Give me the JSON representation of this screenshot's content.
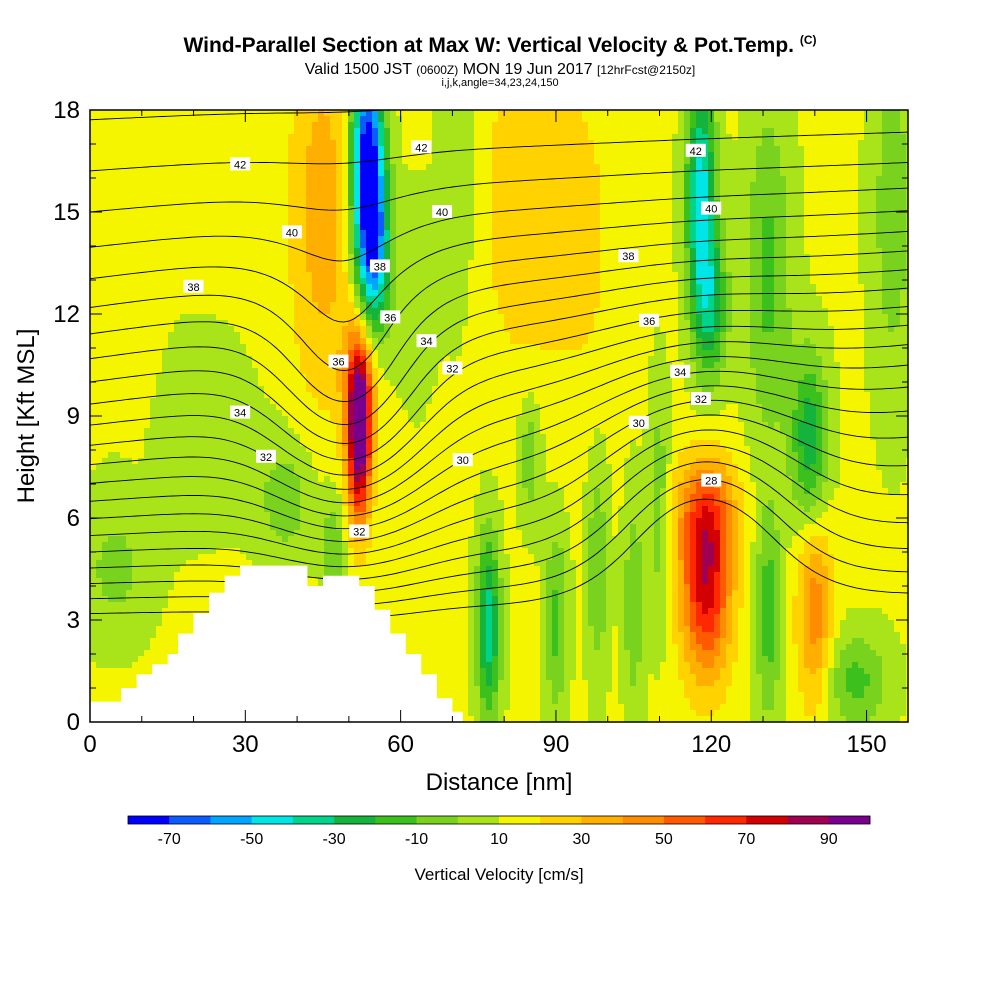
{
  "header": {
    "title": "Wind-Parallel Section at Max W: Vertical Velocity & Pot.Temp.",
    "copyright": "(C)",
    "valid_prefix": "Valid 1500 JST",
    "utc": "(0600Z)",
    "valid_date": "MON 19 Jun 2017",
    "forecast": "[12hrFcst@2150z]",
    "params": "i,j,k,angle=34,23,24,150"
  },
  "chart_data": {
    "type": "heatmap",
    "xlabel": "Distance [nm]",
    "ylabel": "Height [Kft MSL]",
    "xlim": [
      0,
      158
    ],
    "ylim": [
      0,
      18
    ],
    "x_ticks": [
      0,
      30,
      60,
      90,
      120,
      150
    ],
    "y_ticks": [
      0,
      3,
      6,
      9,
      12,
      15,
      18
    ],
    "colorbar": {
      "title": "Vertical Velocity [cm/s]",
      "levels": [
        -80,
        -70,
        -60,
        -50,
        -40,
        -30,
        -20,
        -10,
        0,
        10,
        20,
        30,
        40,
        50,
        60,
        70,
        80,
        90,
        100
      ],
      "tick_labels": [
        "-70",
        "-50",
        "-30",
        "-10",
        "10",
        "30",
        "50",
        "70",
        "90"
      ],
      "colors": [
        "#0000ff",
        "#0a5cff",
        "#00a5ff",
        "#00e5e5",
        "#00d48a",
        "#16b33c",
        "#3cc01e",
        "#78d21e",
        "#a9e319",
        "#f5f500",
        "#ffd200",
        "#ffaf00",
        "#ff8c00",
        "#ff5a00",
        "#ff2800",
        "#d20000",
        "#a00050",
        "#78008c"
      ]
    },
    "contour_variable": "Potential temperature (C)",
    "contour_labels": [
      {
        "text": "42",
        "x": 29,
        "y": 16.4
      },
      {
        "text": "42",
        "x": 64,
        "y": 16.9
      },
      {
        "text": "42",
        "x": 117,
        "y": 16.8
      },
      {
        "text": "40",
        "x": 39,
        "y": 14.4
      },
      {
        "text": "40",
        "x": 68,
        "y": 15.0
      },
      {
        "text": "40",
        "x": 120,
        "y": 15.1
      },
      {
        "text": "38",
        "x": 20,
        "y": 12.8
      },
      {
        "text": "38",
        "x": 56,
        "y": 13.4
      },
      {
        "text": "38",
        "x": 104,
        "y": 13.7
      },
      {
        "text": "36",
        "x": 48,
        "y": 10.6
      },
      {
        "text": "36",
        "x": 58,
        "y": 11.9
      },
      {
        "text": "36",
        "x": 108,
        "y": 11.8
      },
      {
        "text": "34",
        "x": 29,
        "y": 9.1
      },
      {
        "text": "34",
        "x": 65,
        "y": 11.2
      },
      {
        "text": "34",
        "x": 114,
        "y": 10.3
      },
      {
        "text": "32",
        "x": 34,
        "y": 7.8
      },
      {
        "text": "32",
        "x": 70,
        "y": 10.4
      },
      {
        "text": "32",
        "x": 118,
        "y": 9.5
      },
      {
        "text": "32",
        "x": 52,
        "y": 5.6
      },
      {
        "text": "30",
        "x": 106,
        "y": 8.8
      },
      {
        "text": "30",
        "x": 72,
        "y": 7.7
      },
      {
        "text": "28",
        "x": 120,
        "y": 7.1
      }
    ],
    "terrain_profile": [
      [
        0,
        0.6
      ],
      [
        6,
        0.6
      ],
      [
        6,
        1.0
      ],
      [
        9,
        1.0
      ],
      [
        9,
        1.4
      ],
      [
        12,
        1.4
      ],
      [
        12,
        1.7
      ],
      [
        15,
        1.7
      ],
      [
        15,
        2.0
      ],
      [
        17,
        2.0
      ],
      [
        17,
        2.6
      ],
      [
        20,
        2.6
      ],
      [
        20,
        3.2
      ],
      [
        23,
        3.2
      ],
      [
        23,
        3.8
      ],
      [
        26,
        3.8
      ],
      [
        26,
        4.3
      ],
      [
        29,
        4.3
      ],
      [
        29,
        4.6
      ],
      [
        42,
        4.6
      ],
      [
        42,
        4.0
      ],
      [
        45,
        4.0
      ],
      [
        45,
        4.3
      ],
      [
        52,
        4.3
      ],
      [
        52,
        4.0
      ],
      [
        55,
        4.0
      ],
      [
        55,
        3.3
      ],
      [
        58,
        3.3
      ],
      [
        58,
        2.6
      ],
      [
        61,
        2.6
      ],
      [
        61,
        2.0
      ],
      [
        64,
        2.0
      ],
      [
        64,
        1.4
      ],
      [
        67,
        1.4
      ],
      [
        67,
        0.7
      ],
      [
        70,
        0.7
      ],
      [
        70,
        0.3
      ],
      [
        72,
        0.3
      ],
      [
        72,
        0
      ]
    ]
  }
}
